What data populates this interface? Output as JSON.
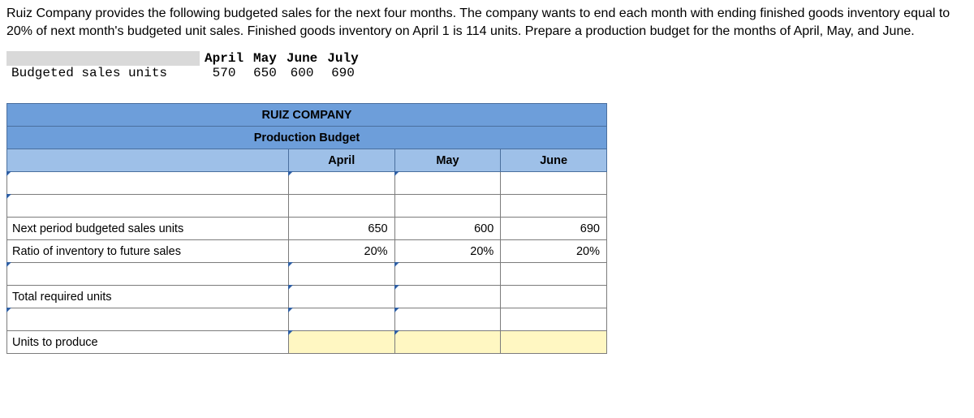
{
  "problem": {
    "text": "Ruiz Company provides the following budgeted sales for the next four months. The company wants to end each month with ending finished goods inventory equal to 20% of next month's budgeted unit sales. Finished goods inventory on April 1 is 114 units. Prepare a production budget for the months of April, May, and June."
  },
  "sales_table": {
    "row_label": "Budgeted sales units",
    "months": [
      "April",
      "May",
      "June",
      "July"
    ],
    "values": [
      "570",
      "650",
      "600",
      "690"
    ]
  },
  "budget": {
    "company": "RUIZ COMPANY",
    "title": "Production Budget",
    "headers": [
      "April",
      "May",
      "June"
    ],
    "rows": {
      "blank1": {
        "label": "",
        "vals": [
          "",
          "",
          ""
        ]
      },
      "blank2": {
        "label": "",
        "vals": [
          "",
          "",
          ""
        ]
      },
      "next_period": {
        "label": "Next period budgeted sales units",
        "vals": [
          "650",
          "600",
          "690"
        ]
      },
      "ratio": {
        "label": "Ratio of inventory to future sales",
        "vals": [
          "20%",
          "20%",
          "20%"
        ]
      },
      "blank3": {
        "label": "",
        "vals": [
          "",
          "",
          ""
        ]
      },
      "total_required": {
        "label": "Total required units",
        "vals": [
          "",
          "",
          ""
        ]
      },
      "blank4": {
        "label": "",
        "vals": [
          "",
          "",
          ""
        ]
      },
      "units_to_produce": {
        "label": "Units to produce",
        "vals": [
          "",
          "",
          ""
        ]
      }
    }
  },
  "style": {
    "header_blue": "#6d9eda",
    "subheader_blue": "#9ec0e8",
    "highlight_yellow": "#fff7c2",
    "border_gray": "#7c7c7c"
  }
}
